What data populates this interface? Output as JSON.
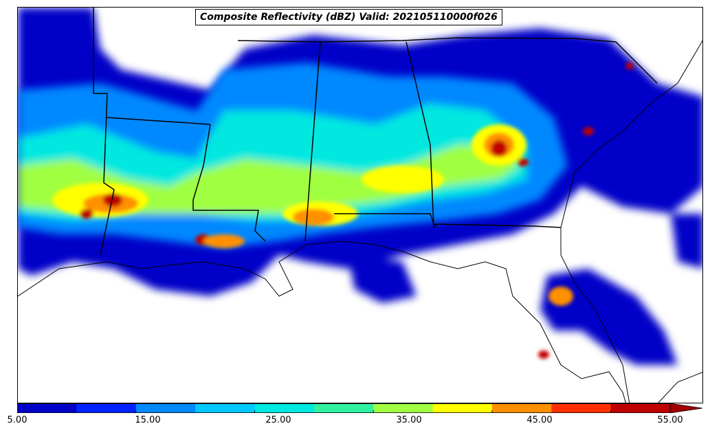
{
  "title": "Composite Reflectivity (dBZ) Valid: 202105110000f026",
  "colorbar": {
    "levels": [
      5,
      10,
      15,
      20,
      25,
      30,
      35,
      40,
      45,
      50,
      55
    ],
    "colors": [
      "#0000c8",
      "#0022ff",
      "#0088ff",
      "#00c8ff",
      "#00e8e0",
      "#30f0a0",
      "#a0ff40",
      "#ffff00",
      "#ff9000",
      "#ff3000",
      "#c00000",
      "#a00000"
    ],
    "tick_labels": [
      "5.00",
      "15.00",
      "25.00",
      "35.00",
      "45.00",
      "55.00"
    ],
    "extend": "max"
  },
  "legend_colors": {
    "border": "#000000",
    "background": "#ffffff"
  }
}
